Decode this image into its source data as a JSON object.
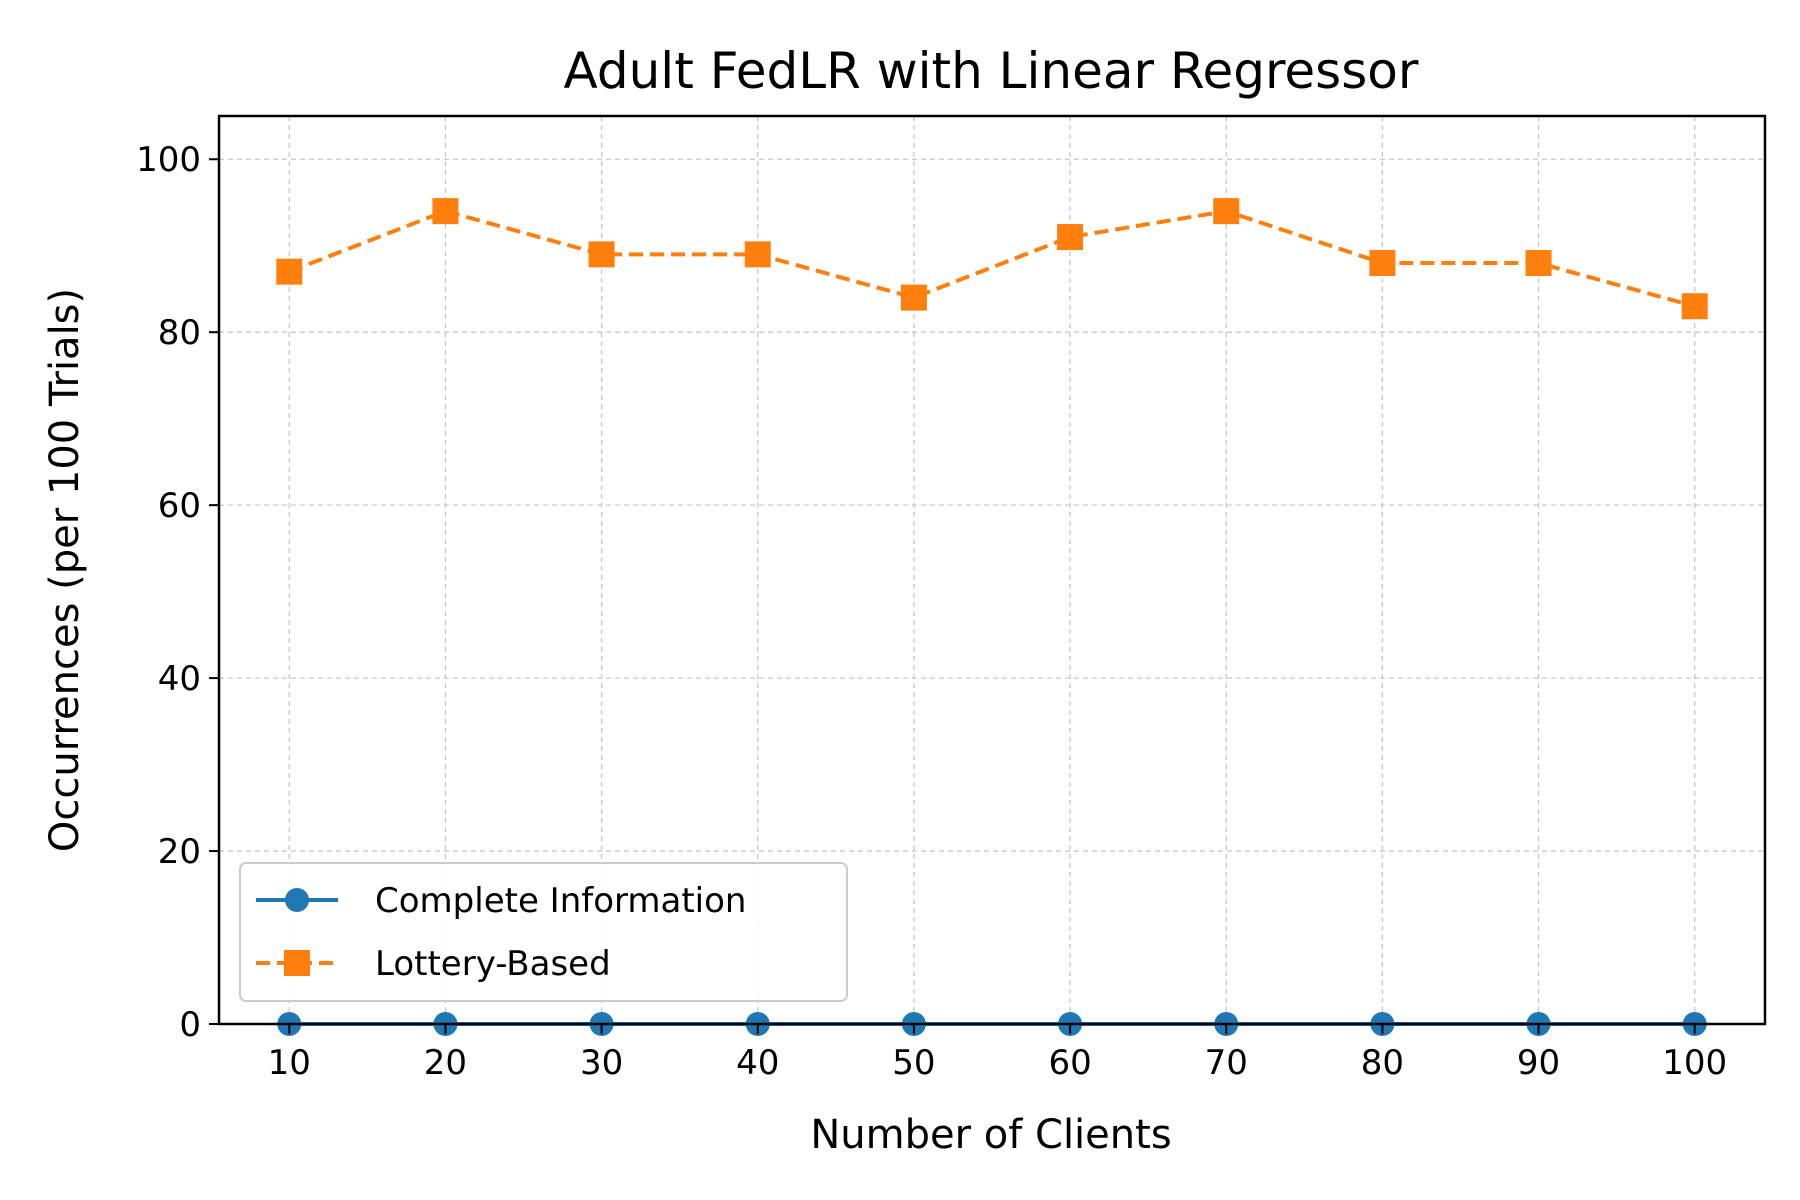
{
  "chart_data": {
    "type": "line",
    "title": "Adult FedLR with Linear Regressor",
    "xlabel": "Number of Clients",
    "ylabel": "Occurrences (per 100 Trials)",
    "x": [
      10,
      20,
      30,
      40,
      50,
      60,
      70,
      80,
      90,
      100
    ],
    "xticks": [
      "10",
      "20",
      "30",
      "40",
      "50",
      "60",
      "70",
      "80",
      "90",
      "100"
    ],
    "yticks": [
      "0",
      "20",
      "40",
      "60",
      "80",
      "100"
    ],
    "xlim": [
      5.5,
      104.5
    ],
    "ylim": [
      0,
      105
    ],
    "grid": true,
    "legend_position": "lower-left",
    "series": [
      {
        "name": "Complete Information",
        "values": [
          0,
          0,
          0,
          0,
          0,
          0,
          0,
          0,
          0,
          0
        ],
        "color": "#1f77b4",
        "marker": "circle",
        "line_style": "solid"
      },
      {
        "name": "Lottery-Based",
        "values": [
          87,
          94,
          89,
          89,
          84,
          91,
          94,
          88,
          88,
          83
        ],
        "color": "#ff7f0e",
        "marker": "square",
        "line_style": "dashed"
      }
    ]
  }
}
